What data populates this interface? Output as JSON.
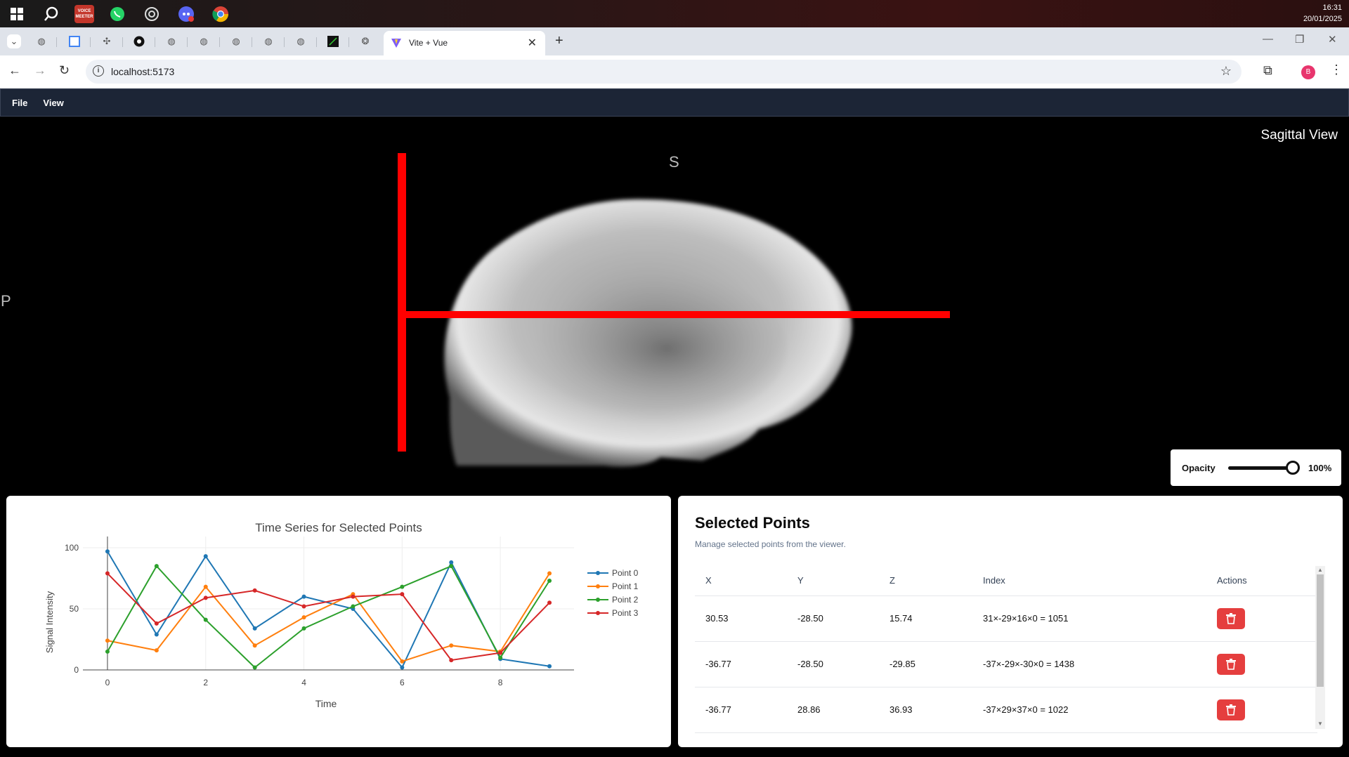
{
  "taskbar": {
    "icons": [
      "windows-start-icon",
      "search-icon",
      "voicemeeter-icon",
      "whatsapp-icon",
      "obs-icon",
      "discord-icon",
      "chrome-icon"
    ],
    "voicemeeter_text": "VOICE MEETER",
    "time": "16:31",
    "date": "20/01/2025"
  },
  "browser": {
    "active_tab_title": "Vite + Vue",
    "url": "localhost:5173",
    "profile_initial": "B"
  },
  "menu": {
    "items": [
      "File",
      "View"
    ]
  },
  "viewer": {
    "title": "Sagittal View",
    "orient_top": "S",
    "orient_left": "P",
    "opacity_label": "Opacity",
    "opacity_value": "100%",
    "opacity_level": 1.0
  },
  "chart_data": {
    "type": "line",
    "title": "Time Series for Selected Points",
    "xlabel": "Time",
    "ylabel": "Signal Intensity",
    "xlim": [
      -0.5,
      9.5
    ],
    "ylim": [
      0,
      100
    ],
    "xticks": [
      0,
      2,
      4,
      6,
      8
    ],
    "yticks": [
      0,
      50,
      100
    ],
    "grid": true,
    "legend_position": "right",
    "x": [
      0,
      1,
      2,
      3,
      4,
      5,
      6,
      7,
      8,
      9
    ],
    "series": [
      {
        "name": "Point 0",
        "color": "#1f77b4",
        "values": [
          97,
          29,
          93,
          34,
          60,
          50,
          2,
          88,
          9,
          3
        ]
      },
      {
        "name": "Point 1",
        "color": "#ff7f0e",
        "values": [
          24,
          16,
          68,
          20,
          43,
          62,
          7,
          20,
          15,
          79
        ]
      },
      {
        "name": "Point 2",
        "color": "#2ca02c",
        "values": [
          15,
          85,
          41,
          2,
          34,
          52,
          68,
          85,
          10,
          73
        ]
      },
      {
        "name": "Point 3",
        "color": "#d62728",
        "values": [
          79,
          38,
          59,
          65,
          52,
          60,
          62,
          8,
          14,
          55
        ]
      }
    ]
  },
  "points_panel": {
    "title": "Selected Points",
    "subtitle": "Manage selected points from the viewer.",
    "headers": [
      "X",
      "Y",
      "Z",
      "Index",
      "Actions"
    ],
    "rows": [
      {
        "x": "30.53",
        "y": "-28.50",
        "z": "15.74",
        "index": "31×-29×16×0 = 1051"
      },
      {
        "x": "-36.77",
        "y": "-28.50",
        "z": "-29.85",
        "index": "-37×-29×-30×0 = 1438"
      },
      {
        "x": "-36.77",
        "y": "28.86",
        "z": "36.93",
        "index": "-37×29×37×0 = 1022"
      }
    ]
  }
}
